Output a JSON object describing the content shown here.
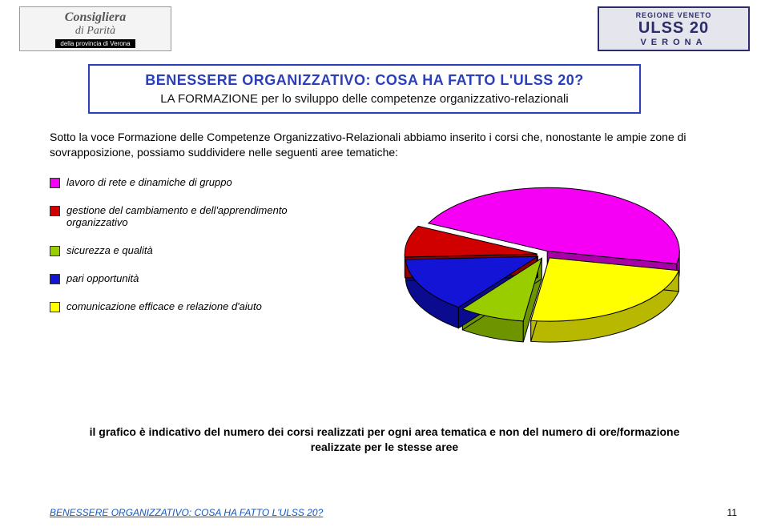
{
  "logos": {
    "left_line1": "Consigliera",
    "left_line2": "di Parità",
    "left_bar": "della provincia di Verona",
    "right_top": "REGIONE VENETO",
    "right_main": "ULSS 20",
    "right_sub": "VERONA"
  },
  "title": {
    "main": "BENESSERE ORGANIZZATIVO: COSA HA FATTO L'ULSS 20?",
    "sub": "LA FORMAZIONE per lo sviluppo delle competenze organizzativo-relazionali"
  },
  "body_text": "Sotto la voce Formazione delle Competenze Organizzativo-Relazionali abbiamo inserito i corsi che, nonostante le ampie zone di sovrapposizione, possiamo suddividere nelle seguenti aree tematiche:",
  "legend": [
    {
      "label": "lavoro di rete e dinamiche di gruppo",
      "color": "#f500f5"
    },
    {
      "label": "gestione del cambiamento e dell'apprendimento organizzativo",
      "color": "#d10000"
    },
    {
      "label": "sicurezza e qualità",
      "color": "#9acd00"
    },
    {
      "label": "pari opportunità",
      "color": "#1414d6"
    },
    {
      "label": "comunicazione efficace e relazione d'aiuto",
      "color": "#ffff00"
    }
  ],
  "chart": {
    "type": "pie",
    "explode": 0.06,
    "edge_color": "#000000",
    "edge_width": 1,
    "tilt": 0.48,
    "depth": 26,
    "slices": [
      {
        "label": "lavoro di rete e dinamiche di gruppo",
        "value": 46,
        "color": "#f500f5",
        "side_color": "#a800a8"
      },
      {
        "label": "comunicazione efficace e relazione d'aiuto",
        "value": 24,
        "color": "#ffff00",
        "side_color": "#b8b800"
      },
      {
        "label": "sicurezza e qualità",
        "value": 8,
        "color": "#9acd00",
        "side_color": "#6e9400"
      },
      {
        "label": "pari opportunità",
        "value": 14,
        "color": "#1414d6",
        "side_color": "#0b0b90"
      },
      {
        "label": "gestione del cambiamento e dell'apprendimento organizzativo",
        "value": 8,
        "color": "#d10000",
        "side_color": "#8a0000"
      }
    ],
    "start_angle_deg": 206
  },
  "caption": "il grafico è indicativo del numero dei corsi realizzati per ogni area tematica e non del numero di ore/formazione realizzate per le stesse aree",
  "footer": {
    "left": "BENESSERE ORGANIZZATIVO: COSA HA FATTO L'ULSS 20?",
    "page": "11"
  }
}
